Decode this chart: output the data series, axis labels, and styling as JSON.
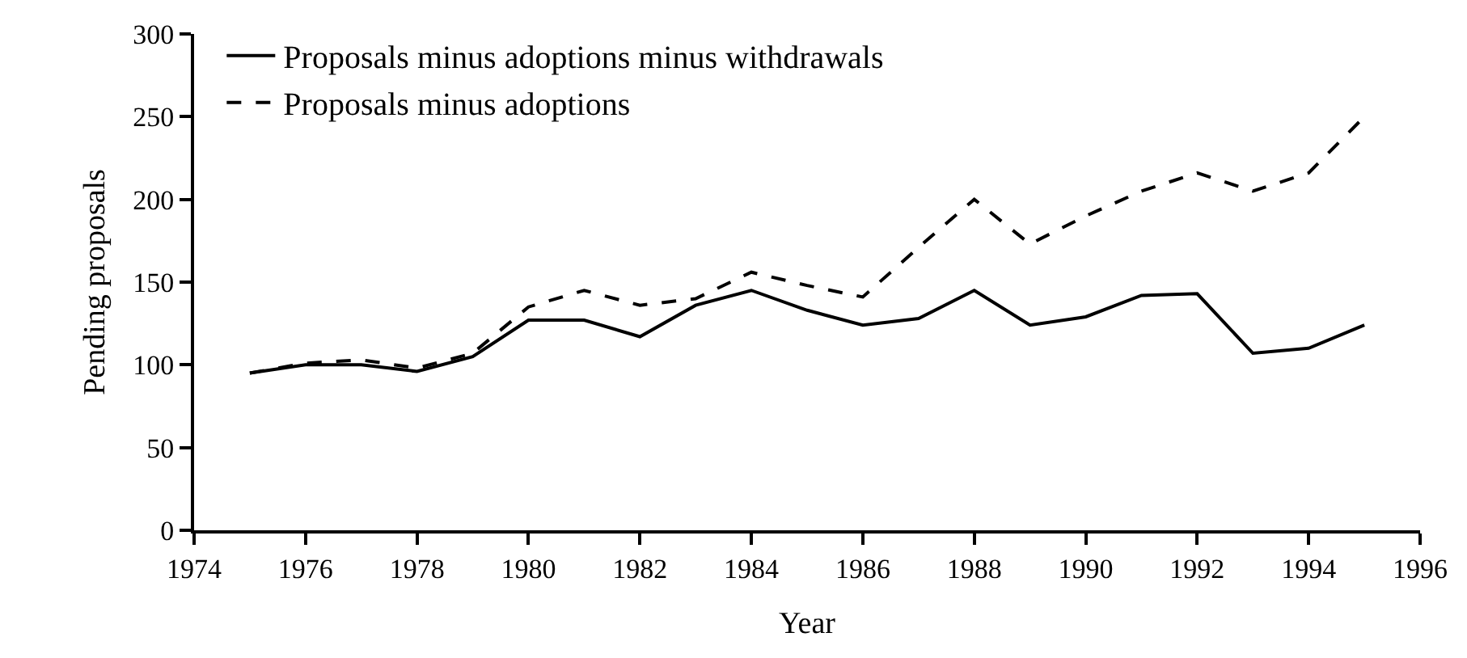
{
  "chart_data": {
    "type": "line",
    "xlabel": "Year",
    "ylabel": "Pending proposals",
    "x": [
      1975,
      1976,
      1977,
      1978,
      1979,
      1980,
      1981,
      1982,
      1983,
      1984,
      1985,
      1986,
      1987,
      1988,
      1989,
      1990,
      1991,
      1992,
      1993,
      1994,
      1995
    ],
    "series": [
      {
        "name": "Proposals minus adoptions minus withdrawals",
        "color": "#000000",
        "line_style": "solid",
        "values": [
          95,
          100,
          100,
          96,
          105,
          127,
          127,
          117,
          136,
          145,
          133,
          124,
          128,
          145,
          124,
          129,
          142,
          143,
          107,
          110,
          124
        ]
      },
      {
        "name": "Proposals minus adoptions",
        "color": "#000000",
        "line_style": "dashed",
        "values": [
          95,
          101,
          103,
          98,
          107,
          135,
          145,
          136,
          140,
          156,
          148,
          141,
          171,
          200,
          173,
          190,
          205,
          216,
          205,
          216,
          250
        ]
      }
    ],
    "xlim": [
      1974,
      1996
    ],
    "xticks": [
      1974,
      1976,
      1978,
      1980,
      1982,
      1984,
      1986,
      1988,
      1990,
      1992,
      1994,
      1996
    ],
    "ylim": [
      0,
      300
    ],
    "yticks": [
      0,
      50,
      100,
      150,
      200,
      250,
      300
    ],
    "legend": "top left",
    "marker": "none"
  }
}
